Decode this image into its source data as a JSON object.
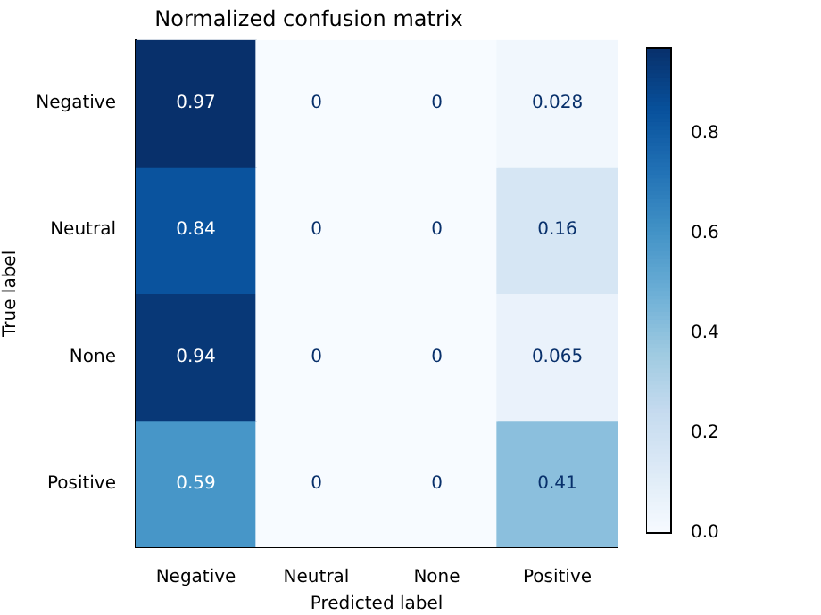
{
  "chart_data": {
    "type": "heatmap",
    "title": "Normalized confusion matrix",
    "xlabel": "Predicted label",
    "ylabel": "True label",
    "categories": [
      "Negative",
      "Neutral",
      "None",
      "Positive"
    ],
    "y_categories": [
      "Negative",
      "Neutral",
      "None",
      "Positive"
    ],
    "cells": [
      [
        0.97,
        0,
        0,
        0.028
      ],
      [
        0.84,
        0,
        0,
        0.16
      ],
      [
        0.94,
        0,
        0,
        0.065
      ],
      [
        0.59,
        0,
        0,
        0.41
      ]
    ],
    "clim": [
      0,
      0.97
    ],
    "cticks": [
      {
        "value": 0,
        "label": "0.0"
      },
      {
        "value": 0.2,
        "label": "0.2"
      },
      {
        "value": 0.4,
        "label": "0.4"
      },
      {
        "value": 0.6,
        "label": "0.6"
      },
      {
        "value": 0.8,
        "label": "0.8"
      }
    ],
    "data_labels": true
  }
}
